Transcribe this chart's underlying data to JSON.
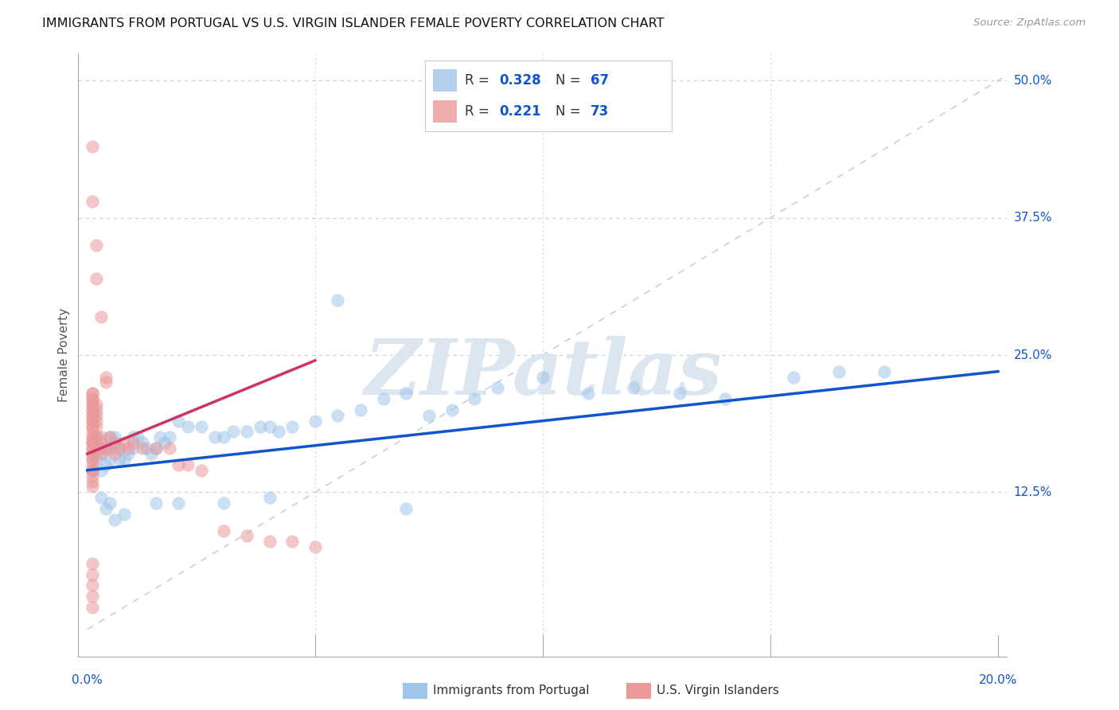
{
  "title": "IMMIGRANTS FROM PORTUGAL VS U.S. VIRGIN ISLANDER FEMALE POVERTY CORRELATION CHART",
  "source": "Source: ZipAtlas.com",
  "ylabel": "Female Poverty",
  "x_min": 0.0,
  "x_max": 0.2,
  "y_min": 0.0,
  "y_max": 0.5,
  "blue_R": "0.328",
  "blue_N": "67",
  "pink_R": "0.221",
  "pink_N": "73",
  "blue_color": "#9fc5e8",
  "pink_color": "#ea9999",
  "blue_line_color": "#1155cc",
  "pink_line_color": "#cc3366",
  "dashed_line_color": "#ccbbcc",
  "grid_color": "#cccccc",
  "watermark_color": "#dce6f1",
  "tick_label_color": "#1155cc",
  "blue_scatter_x": [
    0.001,
    0.001,
    0.001,
    0.002,
    0.002,
    0.002,
    0.003,
    0.003,
    0.004,
    0.004,
    0.005,
    0.005,
    0.006,
    0.006,
    0.007,
    0.007,
    0.008,
    0.009,
    0.01,
    0.01,
    0.011,
    0.012,
    0.013,
    0.014,
    0.015,
    0.016,
    0.017,
    0.018,
    0.02,
    0.022,
    0.025,
    0.028,
    0.03,
    0.032,
    0.035,
    0.038,
    0.04,
    0.042,
    0.045,
    0.05,
    0.055,
    0.06,
    0.065,
    0.07,
    0.075,
    0.08,
    0.085,
    0.09,
    0.1,
    0.11,
    0.12,
    0.13,
    0.14,
    0.155,
    0.165,
    0.175,
    0.003,
    0.004,
    0.005,
    0.006,
    0.008,
    0.015,
    0.02,
    0.03,
    0.04,
    0.055,
    0.07
  ],
  "blue_scatter_y": [
    0.145,
    0.16,
    0.17,
    0.155,
    0.165,
    0.175,
    0.145,
    0.16,
    0.15,
    0.165,
    0.155,
    0.175,
    0.165,
    0.175,
    0.155,
    0.165,
    0.155,
    0.16,
    0.165,
    0.175,
    0.175,
    0.17,
    0.165,
    0.16,
    0.165,
    0.175,
    0.17,
    0.175,
    0.19,
    0.185,
    0.185,
    0.175,
    0.175,
    0.18,
    0.18,
    0.185,
    0.185,
    0.18,
    0.185,
    0.19,
    0.195,
    0.2,
    0.21,
    0.215,
    0.195,
    0.2,
    0.21,
    0.22,
    0.23,
    0.215,
    0.22,
    0.215,
    0.21,
    0.23,
    0.235,
    0.235,
    0.12,
    0.11,
    0.115,
    0.1,
    0.105,
    0.115,
    0.115,
    0.115,
    0.12,
    0.3,
    0.11
  ],
  "pink_scatter_x": [
    0.001,
    0.001,
    0.001,
    0.001,
    0.001,
    0.001,
    0.001,
    0.001,
    0.001,
    0.001,
    0.001,
    0.001,
    0.001,
    0.001,
    0.001,
    0.001,
    0.001,
    0.001,
    0.001,
    0.001,
    0.001,
    0.001,
    0.001,
    0.001,
    0.001,
    0.001,
    0.001,
    0.001,
    0.001,
    0.001,
    0.002,
    0.002,
    0.002,
    0.002,
    0.002,
    0.002,
    0.002,
    0.003,
    0.003,
    0.003,
    0.003,
    0.004,
    0.004,
    0.004,
    0.005,
    0.005,
    0.006,
    0.006,
    0.007,
    0.008,
    0.009,
    0.01,
    0.012,
    0.015,
    0.018,
    0.02,
    0.022,
    0.025,
    0.03,
    0.035,
    0.04,
    0.045,
    0.05,
    0.001,
    0.001,
    0.002,
    0.002,
    0.003,
    0.001,
    0.001,
    0.001,
    0.001,
    0.001
  ],
  "pink_scatter_y": [
    0.155,
    0.165,
    0.17,
    0.175,
    0.18,
    0.185,
    0.19,
    0.195,
    0.2,
    0.205,
    0.21,
    0.215,
    0.215,
    0.21,
    0.205,
    0.2,
    0.195,
    0.19,
    0.185,
    0.175,
    0.17,
    0.165,
    0.16,
    0.155,
    0.15,
    0.145,
    0.14,
    0.135,
    0.13,
    0.145,
    0.185,
    0.19,
    0.195,
    0.2,
    0.205,
    0.175,
    0.165,
    0.17,
    0.175,
    0.165,
    0.16,
    0.23,
    0.225,
    0.165,
    0.175,
    0.165,
    0.17,
    0.16,
    0.165,
    0.17,
    0.165,
    0.17,
    0.165,
    0.165,
    0.165,
    0.15,
    0.15,
    0.145,
    0.09,
    0.085,
    0.08,
    0.08,
    0.075,
    0.44,
    0.39,
    0.35,
    0.32,
    0.285,
    0.06,
    0.05,
    0.04,
    0.03,
    0.02
  ]
}
